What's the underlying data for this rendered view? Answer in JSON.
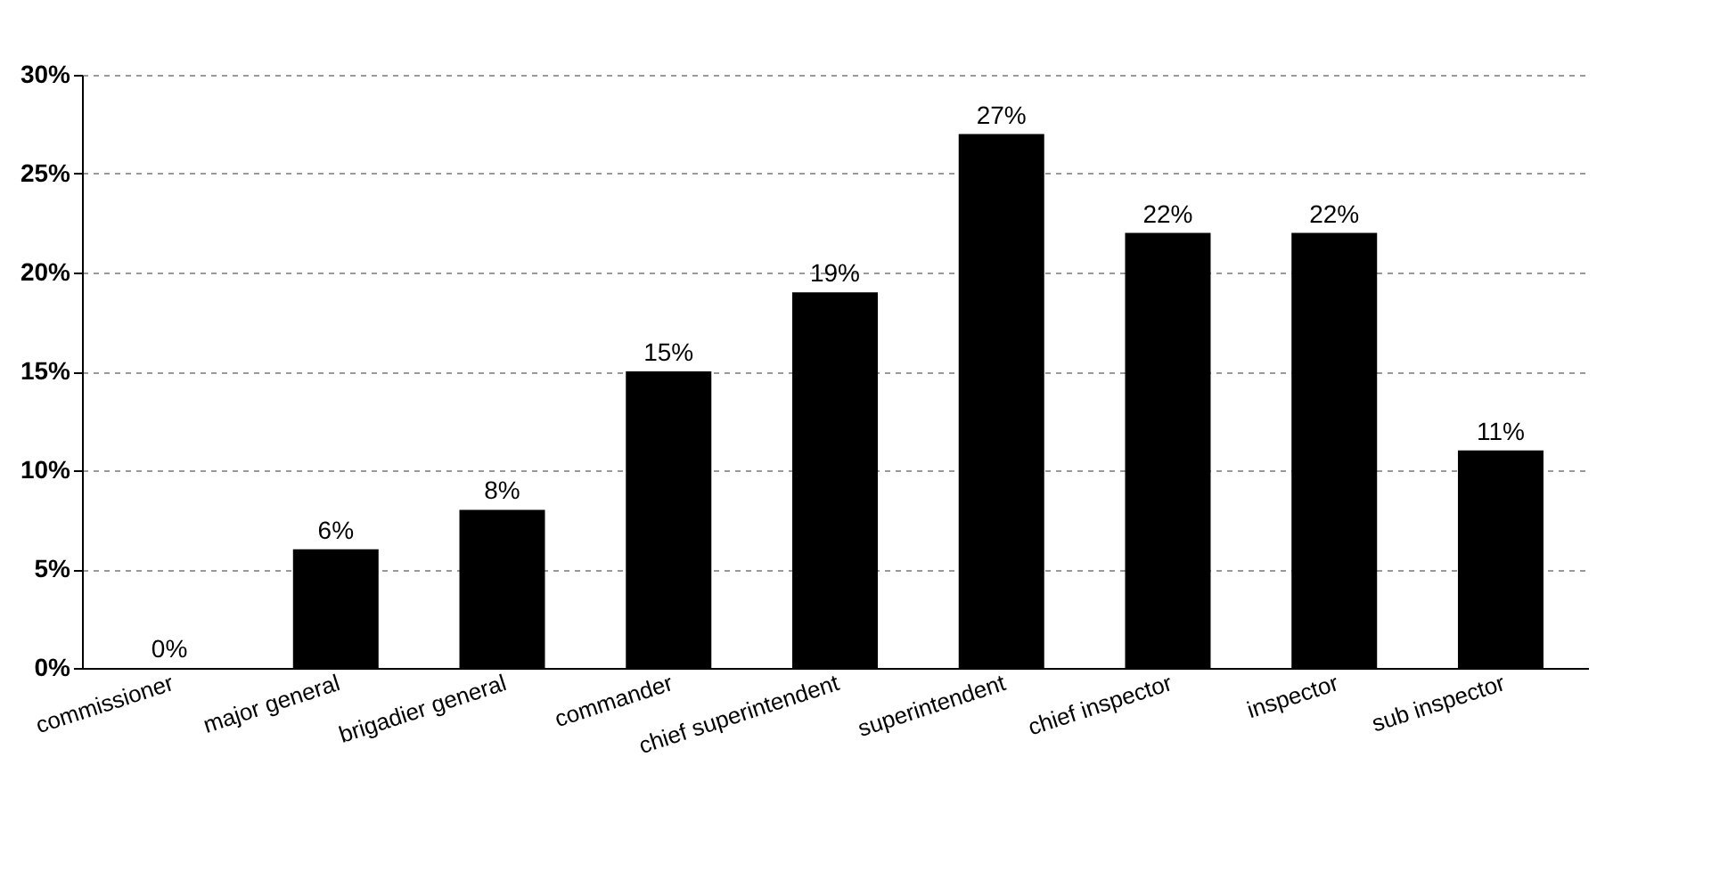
{
  "chart_data": {
    "type": "bar",
    "categories": [
      "commissioner",
      "major general",
      "brigadier general",
      "commander",
      "chief superintendent",
      "superintendent",
      "chief inspector",
      "inspector",
      "sub inspector"
    ],
    "values": [
      0,
      6,
      8,
      15,
      19,
      27,
      22,
      22,
      11
    ],
    "value_labels": [
      "0%",
      "6%",
      "8%",
      "15%",
      "19%",
      "27%",
      "22%",
      "22%",
      "11%"
    ],
    "color": "#000000",
    "ylim": [
      0,
      30
    ],
    "yticks": [
      {
        "value": 0,
        "label": "0%"
      },
      {
        "value": 5,
        "label": "5%"
      },
      {
        "value": 10,
        "label": "10%"
      },
      {
        "value": 15,
        "label": "15%"
      },
      {
        "value": 20,
        "label": "20%"
      },
      {
        "value": 25,
        "label": "25%"
      },
      {
        "value": 30,
        "label": "30%"
      }
    ],
    "grid": "y"
  }
}
